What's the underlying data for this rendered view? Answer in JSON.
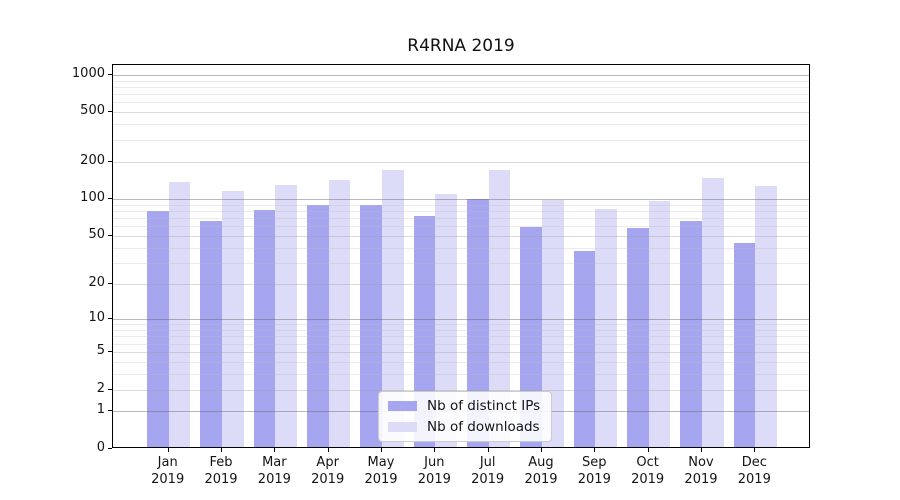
{
  "title": "R4RNA 2019",
  "chart_data": {
    "type": "bar",
    "title": "R4RNA 2019",
    "categories": [
      "Jan 2019",
      "Feb 2019",
      "Mar 2019",
      "Apr 2019",
      "May 2019",
      "Jun 2019",
      "Jul 2019",
      "Aug 2019",
      "Sep 2019",
      "Oct 2019",
      "Nov 2019",
      "Dec 2019"
    ],
    "series": [
      {
        "name": "Nb of distinct IPs",
        "color": "#a5a5f0",
        "values": [
          77,
          64,
          78,
          86,
          86,
          70,
          96,
          57,
          36,
          56,
          64,
          42
        ]
      },
      {
        "name": "Nb of downloads",
        "color": "#dcdcf8",
        "values": [
          132,
          111,
          126,
          138,
          166,
          105,
          166,
          94,
          80,
          93,
          143,
          122
        ]
      }
    ],
    "yscale": "log1p",
    "ylim": [
      0,
      1200
    ],
    "yticks": [
      0,
      1,
      2,
      5,
      10,
      20,
      50,
      100,
      200,
      500,
      1000
    ],
    "major_gridlines": [
      1,
      10,
      100,
      1000
    ],
    "grid": true,
    "legend_position": "lower center"
  }
}
